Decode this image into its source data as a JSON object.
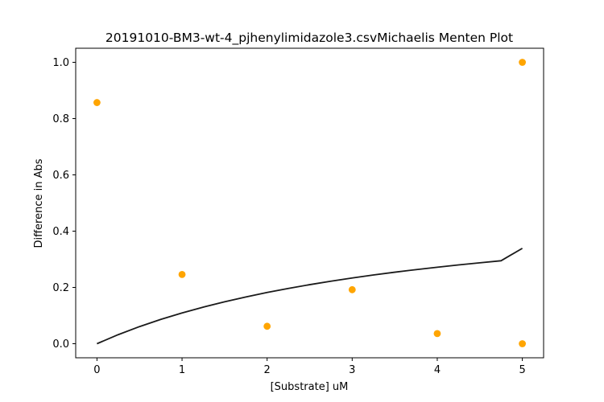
{
  "chart_data": {
    "type": "scatter",
    "title": "20191010-BM3-wt-4_pjhenylimidazole3.csvMichaelis Menten Plot",
    "xlabel": "[Substrate] uM",
    "ylabel": "Difference in Abs",
    "xlim": [
      -0.25,
      5.25
    ],
    "ylim": [
      -0.05,
      1.05
    ],
    "xticks": [
      0,
      1,
      2,
      3,
      4,
      5
    ],
    "xtick_labels": [
      "0",
      "1",
      "2",
      "3",
      "4",
      "5"
    ],
    "yticks": [
      0.0,
      0.2,
      0.4,
      0.6,
      0.8,
      1.0
    ],
    "ytick_labels": [
      "0.0",
      "0.2",
      "0.4",
      "0.6",
      "0.8",
      "1.0"
    ],
    "grid": false,
    "series": [
      {
        "kind": "scatter",
        "color": "#ffa500",
        "x": [
          0,
          1,
          2,
          3,
          4,
          5,
          5
        ],
        "y": [
          0.857,
          0.246,
          0.062,
          0.192,
          0.036,
          1.0,
          0.0
        ]
      },
      {
        "kind": "line",
        "color": "#1a1a1a",
        "x": [
          0,
          0.25,
          0.5,
          0.75,
          1,
          1.25,
          1.5,
          1.75,
          2,
          2.25,
          2.5,
          2.75,
          3,
          3.25,
          3.5,
          3.75,
          4,
          4.25,
          4.5,
          4.75,
          5
        ],
        "y": [
          0,
          0.0322,
          0.0608,
          0.0864,
          0.1093,
          0.1301,
          0.149,
          0.1662,
          0.182,
          0.1965,
          0.2098,
          0.2222,
          0.2336,
          0.2442,
          0.2541,
          0.2633,
          0.2719,
          0.28,
          0.2876,
          0.2948,
          0.339
        ]
      }
    ]
  }
}
